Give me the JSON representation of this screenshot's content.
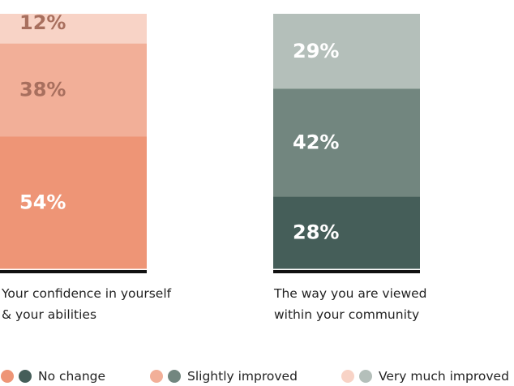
{
  "chart_data": {
    "type": "bar",
    "stacked": true,
    "categories": [
      "Your confidence in yourself & your abilities",
      "The way you are viewed within your community"
    ],
    "category_lines": [
      [
        "Your confidence in yourself",
        "& your abilities"
      ],
      [
        "The way you are viewed",
        "within your community"
      ]
    ],
    "series": [
      {
        "name": "No change",
        "values": [
          54,
          28
        ],
        "labels": [
          "54%",
          "28%"
        ],
        "colors": [
          "#ee9576",
          "#455e59"
        ],
        "label_colors": [
          "#ffffff",
          "#ffffff"
        ]
      },
      {
        "name": "Slightly improved",
        "values": [
          38,
          42
        ],
        "labels": [
          "38%",
          "42%"
        ],
        "colors": [
          "#f2af98",
          "#72867f"
        ],
        "label_colors": [
          "#a86f5e",
          "#ffffff"
        ]
      },
      {
        "name": "Very much improved",
        "values": [
          12,
          29
        ],
        "labels": [
          "12%",
          "29%"
        ],
        "colors": [
          "#f8d3c6",
          "#b4bfba"
        ],
        "label_colors": [
          "#a86f5e",
          "#ffffff"
        ]
      }
    ],
    "legend_position": "bottom",
    "grid": false,
    "axes_visible": false,
    "baseline_color": "#111111"
  }
}
